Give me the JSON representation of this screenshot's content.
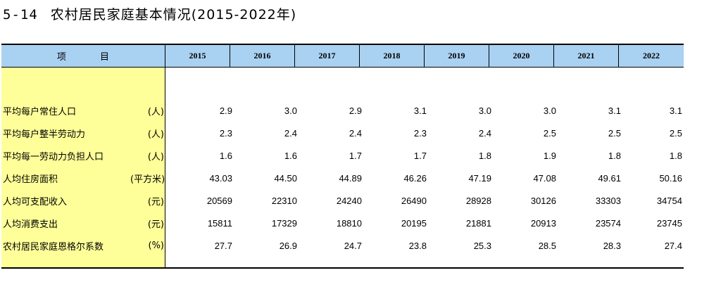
{
  "title": {
    "number": "5-14",
    "text": "农村居民家庭基本情况(2015-2022年)"
  },
  "table": {
    "item_header": "项 目",
    "years": [
      "2015",
      "2016",
      "2017",
      "2018",
      "2019",
      "2020",
      "2021",
      "2022"
    ],
    "rows": [
      {
        "label": "平均每户常住人口",
        "unit": "(人)",
        "values": [
          "2.9",
          "3.0",
          "2.9",
          "3.1",
          "3.0",
          "3.0",
          "3.1",
          "3.1"
        ]
      },
      {
        "label": "平均每户整半劳动力",
        "unit": "(人)",
        "values": [
          "2.3",
          "2.4",
          "2.4",
          "2.3",
          "2.4",
          "2.5",
          "2.5",
          "2.5"
        ]
      },
      {
        "label": "平均每一劳动力负担人口",
        "unit": "(人)",
        "values": [
          "1.6",
          "1.6",
          "1.7",
          "1.7",
          "1.8",
          "1.9",
          "1.8",
          "1.8"
        ]
      },
      {
        "label": "人均住房面积",
        "unit": "(平方米)",
        "values": [
          "43.03",
          "44.50",
          "44.89",
          "46.26",
          "47.19",
          "47.08",
          "49.61",
          "50.16"
        ]
      },
      {
        "label": "人均可支配收入",
        "unit": "(元)",
        "values": [
          "20569",
          "22310",
          "24240",
          "26490",
          "28928",
          "30126",
          "33303",
          "34754"
        ]
      },
      {
        "label": "人均消费支出",
        "unit": "(元)",
        "values": [
          "15811",
          "17329",
          "18810",
          "20195",
          "21881",
          "20913",
          "23574",
          "23745"
        ]
      },
      {
        "label": "农村居民家庭恩格尔系数",
        "unit": "(%)",
        "values": [
          "27.7",
          "26.9",
          "24.7",
          "23.8",
          "25.3",
          "28.5",
          "28.3",
          "27.4"
        ]
      }
    ]
  },
  "colors": {
    "header_bg": "#a9d1f2",
    "label_col_bg": "#ffff99"
  }
}
